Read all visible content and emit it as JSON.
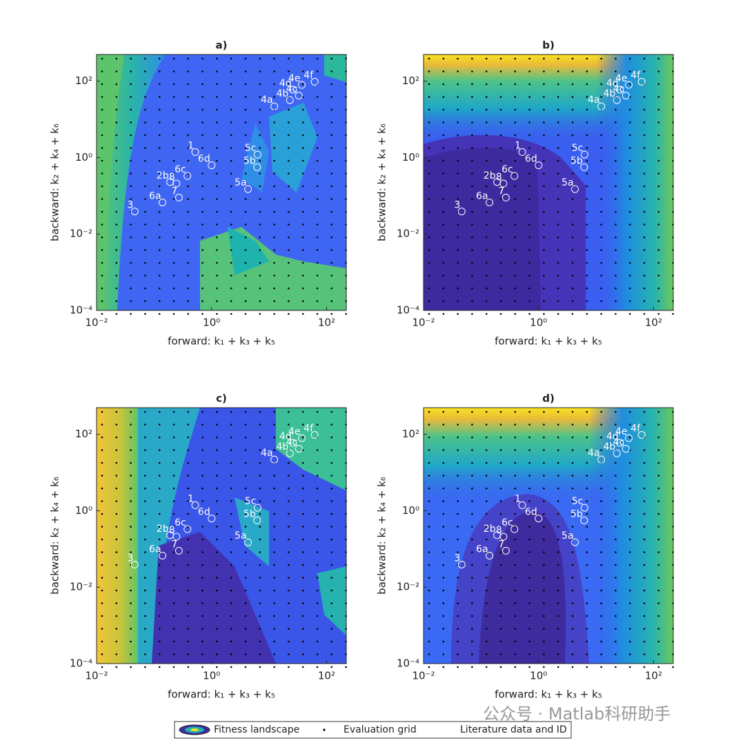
{
  "chart_data": [
    {
      "type": "scatter",
      "title": "a)",
      "xlabel": "forward: k₁ + k₃ + k₅",
      "ylabel": "backward: k₂ + k₄ + k₆",
      "log": true,
      "xlim": [
        0.01,
        220
      ],
      "ylim": [
        0.0001,
        500
      ],
      "xticks": [
        {
          "value": 0.01,
          "label": "10⁻²"
        },
        {
          "value": 1,
          "label": "10⁰"
        },
        {
          "value": 100,
          "label": "10²"
        }
      ],
      "yticks": [
        {
          "value": 0.0001,
          "label": "10⁻⁴"
        },
        {
          "value": 0.01,
          "label": "10⁻²"
        },
        {
          "value": 1,
          "label": "10⁰"
        },
        {
          "value": 100,
          "label": "10²"
        }
      ],
      "series": [
        {
          "name": "Literature data and ID",
          "color": "#ffffff",
          "labels": [
            "1",
            "6d",
            "6c",
            "2b",
            "8",
            "7",
            "6a",
            "3",
            "5a",
            "5b",
            "5c",
            "4a",
            "4b",
            "4c",
            "4d",
            "4e",
            "4f"
          ],
          "x": [
            0.52,
            1.0,
            0.38,
            0.19,
            0.245,
            0.27,
            0.14,
            0.046,
            4.3,
            6.2,
            6.3,
            12.3,
            23,
            33,
            26,
            37,
            62
          ],
          "values": [
            1.4,
            0.63,
            0.33,
            0.23,
            0.21,
            0.09,
            0.067,
            0.039,
            0.15,
            0.56,
            1.2,
            22,
            32,
            42,
            60,
            80,
            97
          ]
        }
      ]
    },
    {
      "type": "scatter",
      "title": "b)",
      "xlabel": "forward: k₁ + k₃ + k₅",
      "ylabel": "backward: k₂ + k₄ + k₆",
      "log": true,
      "xlim": [
        0.01,
        220
      ],
      "ylim": [
        0.0001,
        500
      ],
      "xticks": [
        {
          "value": 0.01,
          "label": "10⁻²"
        },
        {
          "value": 1,
          "label": "10⁰"
        },
        {
          "value": 100,
          "label": "10²"
        }
      ],
      "yticks": [
        {
          "value": 0.0001,
          "label": "10⁻⁴"
        },
        {
          "value": 0.01,
          "label": "10⁻²"
        },
        {
          "value": 1,
          "label": "10⁰"
        },
        {
          "value": 100,
          "label": "10²"
        }
      ],
      "series": [
        {
          "name": "Literature data and ID",
          "color": "#ffffff",
          "labels": [
            "1",
            "6d",
            "6c",
            "2b",
            "8",
            "7",
            "6a",
            "3",
            "5a",
            "5b",
            "5c",
            "4a",
            "4b",
            "4c",
            "4d",
            "4e",
            "4f"
          ],
          "x": [
            0.52,
            1.0,
            0.38,
            0.19,
            0.245,
            0.27,
            0.14,
            0.046,
            4.3,
            6.2,
            6.3,
            12.3,
            23,
            33,
            26,
            37,
            62
          ],
          "values": [
            1.4,
            0.63,
            0.33,
            0.23,
            0.21,
            0.09,
            0.067,
            0.039,
            0.15,
            0.56,
            1.2,
            22,
            32,
            42,
            60,
            80,
            97
          ]
        }
      ]
    },
    {
      "type": "scatter",
      "title": "c)",
      "xlabel": "forward: k₁ + k₃ + k₅",
      "ylabel": "backward: k₂ + k₄ + k₆",
      "log": true,
      "xlim": [
        0.01,
        220
      ],
      "ylim": [
        0.0001,
        500
      ],
      "xticks": [
        {
          "value": 0.01,
          "label": "10⁻²"
        },
        {
          "value": 1,
          "label": "10⁰"
        },
        {
          "value": 100,
          "label": "10²"
        }
      ],
      "yticks": [
        {
          "value": 0.0001,
          "label": "10⁻⁴"
        },
        {
          "value": 0.01,
          "label": "10⁻²"
        },
        {
          "value": 1,
          "label": "10⁰"
        },
        {
          "value": 100,
          "label": "10²"
        }
      ],
      "series": [
        {
          "name": "Literature data and ID",
          "color": "#ffffff",
          "labels": [
            "1",
            "6d",
            "6c",
            "2b",
            "8",
            "7",
            "6a",
            "3",
            "5a",
            "5b",
            "5c",
            "4a",
            "4b",
            "4c",
            "4d",
            "4e",
            "4f"
          ],
          "x": [
            0.52,
            1.0,
            0.38,
            0.19,
            0.245,
            0.27,
            0.14,
            0.046,
            4.3,
            6.2,
            6.3,
            12.3,
            23,
            33,
            26,
            37,
            62
          ],
          "values": [
            1.4,
            0.63,
            0.33,
            0.23,
            0.21,
            0.09,
            0.067,
            0.039,
            0.15,
            0.56,
            1.2,
            22,
            32,
            42,
            60,
            80,
            97
          ]
        }
      ]
    },
    {
      "type": "scatter",
      "title": "d)",
      "xlabel": "forward: k₁ + k₃ + k₅",
      "ylabel": "backward: k₂ + k₄ + k₆",
      "log": true,
      "xlim": [
        0.01,
        220
      ],
      "ylim": [
        0.0001,
        500
      ],
      "xticks": [
        {
          "value": 0.01,
          "label": "10⁻²"
        },
        {
          "value": 1,
          "label": "10⁰"
        },
        {
          "value": 100,
          "label": "10²"
        }
      ],
      "yticks": [
        {
          "value": 0.0001,
          "label": "10⁻⁴"
        },
        {
          "value": 0.01,
          "label": "10⁻²"
        },
        {
          "value": 1,
          "label": "10⁰"
        },
        {
          "value": 100,
          "label": "10²"
        }
      ],
      "series": [
        {
          "name": "Literature data and ID",
          "color": "#ffffff",
          "labels": [
            "1",
            "6d",
            "6c",
            "2b",
            "8",
            "7",
            "6a",
            "3",
            "5a",
            "5b",
            "5c",
            "4a",
            "4b",
            "4c",
            "4d",
            "4e",
            "4f"
          ],
          "x": [
            0.52,
            1.0,
            0.38,
            0.19,
            0.245,
            0.27,
            0.14,
            0.046,
            4.3,
            6.2,
            6.3,
            12.3,
            23,
            33,
            26,
            37,
            62
          ],
          "values": [
            1.4,
            0.63,
            0.33,
            0.23,
            0.21,
            0.09,
            0.067,
            0.039,
            0.15,
            0.56,
            1.2,
            22,
            32,
            42,
            60,
            80,
            97
          ]
        }
      ]
    }
  ],
  "legend": [
    "Fitness landscape",
    "Evaluation grid",
    "Literature data and ID"
  ],
  "watermark": "公众号 · Matlab科研助手"
}
